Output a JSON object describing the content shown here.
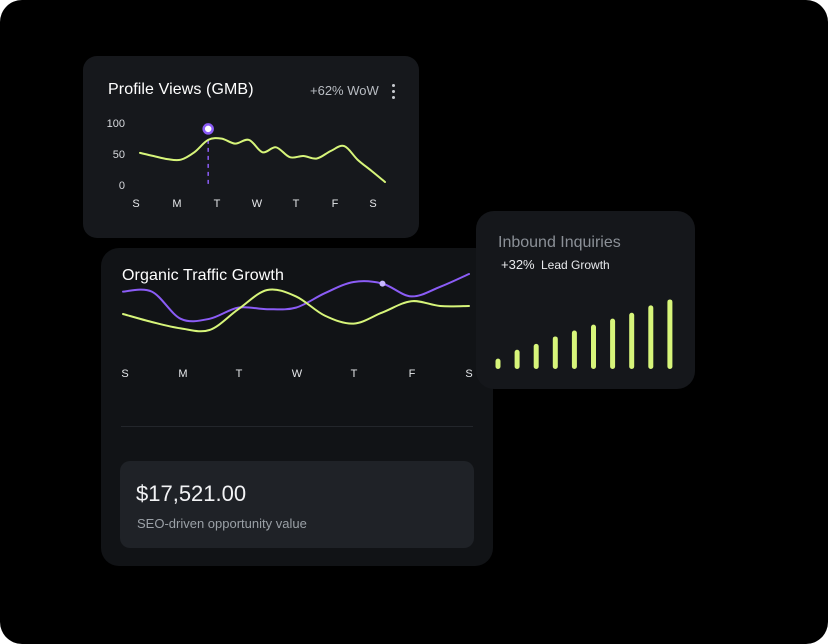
{
  "colors": {
    "accent_lime": "#d7f57a",
    "accent_purple": "#8b5cf6",
    "card_bg": "#121418",
    "value_box_bg": "#1f2227"
  },
  "profile_views": {
    "title": "Profile Views (GMB)",
    "change": "+62% WoW",
    "menu_icon": "kebab-menu-icon",
    "y_ticks": [
      "100",
      "50",
      "0"
    ],
    "x_ticks": [
      "S",
      "M",
      "T",
      "W",
      "T",
      "F",
      "S"
    ]
  },
  "organic_traffic": {
    "title": "Organic Traffic Growth",
    "x_ticks": [
      "S",
      "M",
      "T",
      "W",
      "T",
      "F",
      "S"
    ],
    "value_amount": "$17,521.00",
    "value_label": "SEO-driven opportunity value"
  },
  "inbound": {
    "title": "Inbound Inquiries",
    "change": "+32%",
    "change_label": "Lead Growth"
  },
  "chart_data": [
    {
      "type": "line",
      "title": "Profile Views (GMB)",
      "ylim": [
        0,
        100
      ],
      "y_ticks": [
        0,
        50,
        100
      ],
      "x": [
        0,
        0.33,
        0.67,
        1,
        1.33,
        1.67,
        2,
        2.33,
        2.67,
        3,
        3.33,
        3.67,
        4,
        4.33,
        4.67,
        5,
        5.33,
        5.67,
        6
      ],
      "series": [
        {
          "color": "#d7f57a",
          "values": [
            55,
            50,
            45,
            44,
            56,
            76,
            78,
            70,
            76,
            56,
            64,
            48,
            50,
            46,
            58,
            66,
            44,
            26,
            8
          ]
        }
      ],
      "highlight_index": 5,
      "grid": false
    },
    {
      "type": "line",
      "title": "Organic Traffic Growth",
      "ylim": [
        0,
        100
      ],
      "x": [
        0,
        0.5,
        1,
        1.5,
        2,
        2.5,
        3,
        3.5,
        4,
        4.5,
        5,
        5.5,
        6
      ],
      "series": [
        {
          "color": "#8b5cf6",
          "values": [
            78,
            78,
            44,
            44,
            58,
            56,
            58,
            76,
            90,
            88,
            72,
            84,
            100
          ]
        },
        {
          "color": "#d7f57a",
          "values": [
            50,
            40,
            32,
            30,
            56,
            80,
            72,
            48,
            38,
            52,
            66,
            60,
            60
          ]
        }
      ],
      "highlight_series": 0,
      "highlight_index": 9,
      "grid": false
    },
    {
      "type": "bar",
      "title": "Inbound Inquiries",
      "categories": [
        "1",
        "2",
        "3",
        "4",
        "5",
        "6",
        "7",
        "8",
        "9",
        "10"
      ],
      "values": [
        14,
        26,
        34,
        44,
        52,
        60,
        68,
        76,
        86,
        94
      ],
      "ylim": [
        0,
        100
      ],
      "color": "#d7f57a"
    }
  ]
}
